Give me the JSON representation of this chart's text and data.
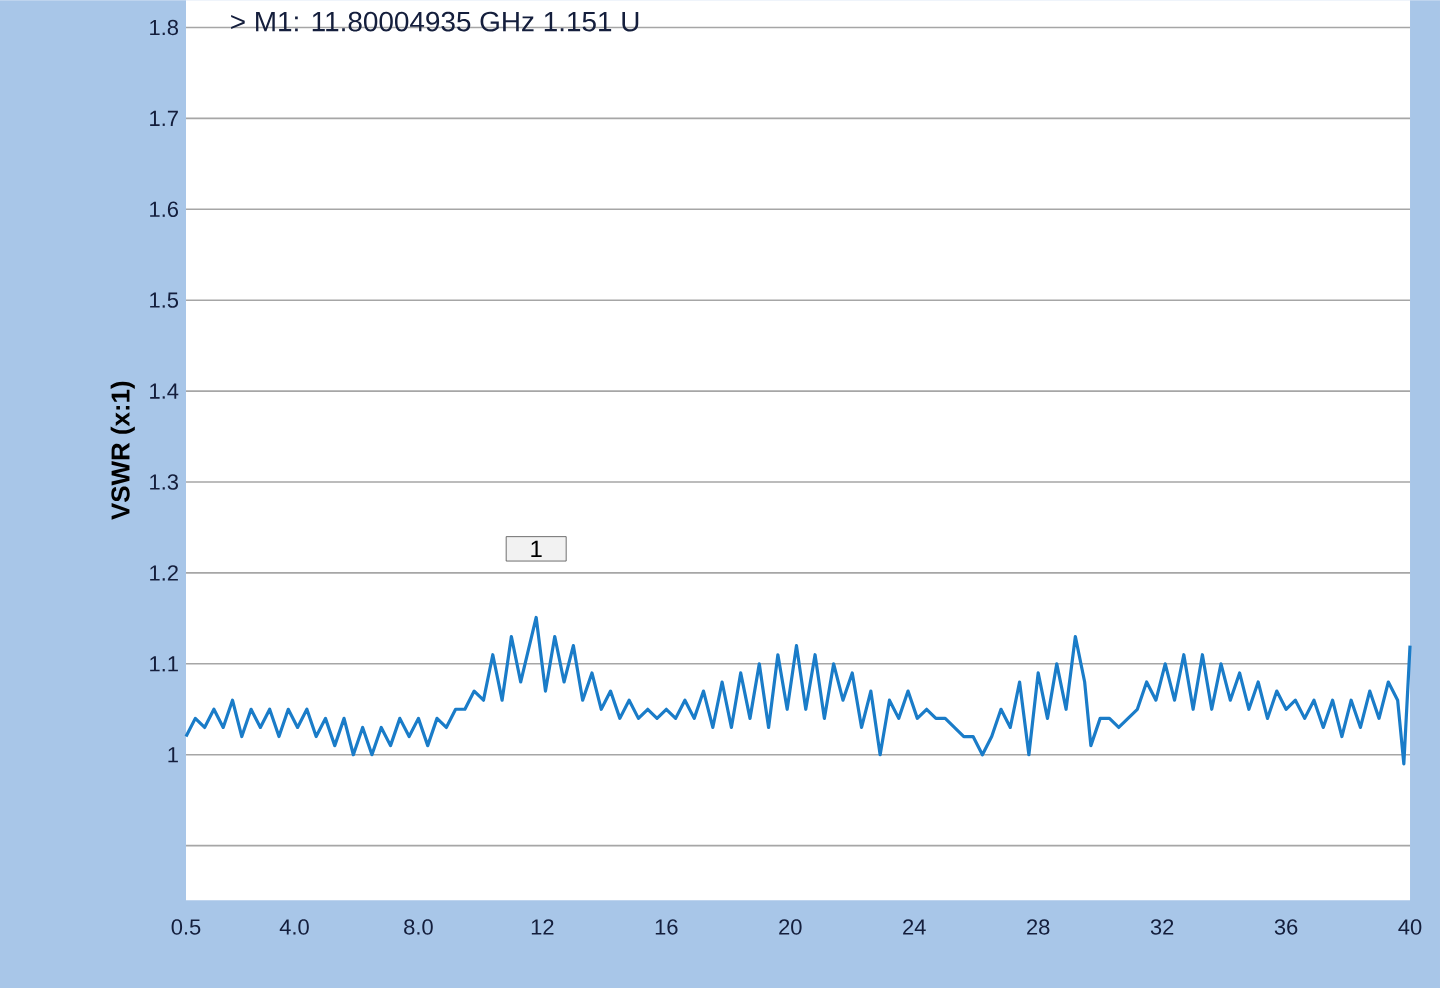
{
  "chart_data": {
    "type": "line",
    "ylabel": "VSWR (x:1)",
    "x": [
      0.5,
      0.8,
      1.1,
      1.4,
      1.7,
      2.0,
      2.3,
      2.6,
      2.9,
      3.2,
      3.5,
      3.8,
      4.1,
      4.4,
      4.7,
      5.0,
      5.3,
      5.6,
      5.9,
      6.2,
      6.5,
      6.8,
      7.1,
      7.4,
      7.7,
      8.0,
      8.3,
      8.6,
      8.9,
      9.2,
      9.5,
      9.8,
      10.1,
      10.4,
      10.7,
      11.0,
      11.3,
      11.8,
      12.1,
      12.4,
      12.7,
      13.0,
      13.3,
      13.6,
      13.9,
      14.2,
      14.5,
      14.8,
      15.1,
      15.4,
      15.7,
      16.0,
      16.3,
      16.6,
      16.9,
      17.2,
      17.5,
      17.8,
      18.1,
      18.4,
      18.7,
      19.0,
      19.3,
      19.6,
      19.9,
      20.2,
      20.5,
      20.8,
      21.1,
      21.4,
      21.7,
      22.0,
      22.3,
      22.6,
      22.9,
      23.2,
      23.5,
      23.8,
      24.1,
      24.4,
      24.7,
      25.0,
      25.3,
      25.6,
      25.9,
      26.2,
      26.5,
      26.8,
      27.1,
      27.4,
      27.7,
      28.0,
      28.3,
      28.6,
      28.9,
      29.2,
      29.5,
      29.7,
      30.0,
      30.3,
      30.6,
      30.9,
      31.2,
      31.5,
      31.8,
      32.1,
      32.4,
      32.7,
      33.0,
      33.3,
      33.6,
      33.9,
      34.2,
      34.5,
      34.8,
      35.1,
      35.4,
      35.7,
      36.0,
      36.3,
      36.6,
      36.9,
      37.2,
      37.5,
      37.8,
      38.1,
      38.4,
      38.7,
      39.0,
      39.3,
      39.6,
      39.8,
      40.0
    ],
    "series": [
      {
        "color": "#1a7cc8",
        "values": [
          1.02,
          1.04,
          1.03,
          1.05,
          1.03,
          1.06,
          1.02,
          1.05,
          1.03,
          1.05,
          1.02,
          1.05,
          1.03,
          1.05,
          1.02,
          1.04,
          1.01,
          1.04,
          1.0,
          1.03,
          1.0,
          1.03,
          1.01,
          1.04,
          1.02,
          1.04,
          1.01,
          1.04,
          1.03,
          1.05,
          1.05,
          1.07,
          1.06,
          1.11,
          1.06,
          1.13,
          1.08,
          1.151,
          1.07,
          1.13,
          1.08,
          1.12,
          1.06,
          1.09,
          1.05,
          1.07,
          1.04,
          1.06,
          1.04,
          1.05,
          1.04,
          1.05,
          1.04,
          1.06,
          1.04,
          1.07,
          1.03,
          1.08,
          1.03,
          1.09,
          1.04,
          1.1,
          1.03,
          1.11,
          1.05,
          1.12,
          1.05,
          1.11,
          1.04,
          1.1,
          1.06,
          1.09,
          1.03,
          1.07,
          1.0,
          1.06,
          1.04,
          1.07,
          1.04,
          1.05,
          1.04,
          1.04,
          1.03,
          1.02,
          1.02,
          1.0,
          1.02,
          1.05,
          1.03,
          1.08,
          1.0,
          1.09,
          1.04,
          1.1,
          1.05,
          1.13,
          1.08,
          1.01,
          1.04,
          1.04,
          1.03,
          1.04,
          1.05,
          1.08,
          1.06,
          1.1,
          1.06,
          1.11,
          1.05,
          1.11,
          1.05,
          1.1,
          1.06,
          1.09,
          1.05,
          1.08,
          1.04,
          1.07,
          1.05,
          1.06,
          1.04,
          1.06,
          1.03,
          1.06,
          1.02,
          1.06,
          1.03,
          1.07,
          1.04,
          1.08,
          1.06,
          0.99,
          1.12
        ]
      }
    ],
    "xlim": [
      0.5,
      40
    ],
    "xticks": [
      0.5,
      {
        "value": 4,
        "label": "4.0"
      },
      {
        "value": 8,
        "label": "8.0"
      },
      12,
      16,
      20,
      24,
      28,
      32,
      36,
      40
    ],
    "ylim": [
      0.84,
      1.83
    ],
    "yticks": [
      {
        "value": 0.9,
        "label": null
      },
      1,
      1.1,
      1.2,
      1.3,
      1.4,
      1.5,
      1.6,
      1.7,
      1.8
    ],
    "grid": "y",
    "marker": "none",
    "line_style": "solid",
    "annotations": [
      "> M1:   11.80004935 GHz   1.151 U",
      {
        "text": "1",
        "x": 11.8,
        "y": 1.151
      }
    ]
  }
}
